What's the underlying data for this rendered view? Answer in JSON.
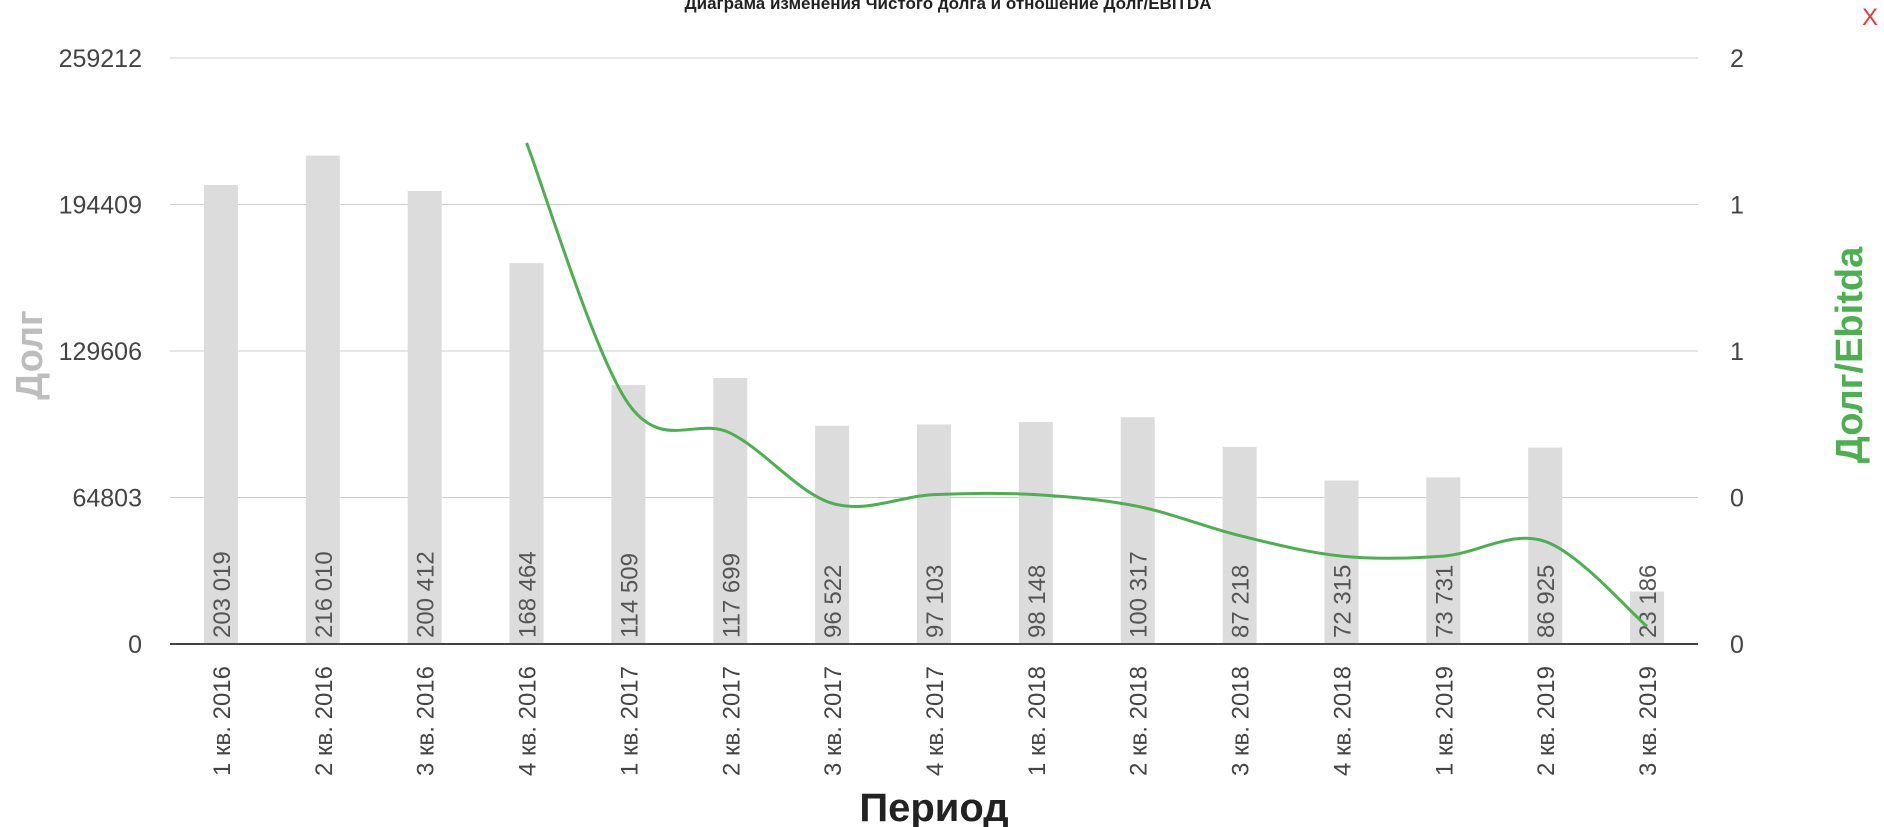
{
  "title": "Диаграма изменения Чистого долга и отношение Долг/EBITDA",
  "close_label": "X",
  "colors": {
    "bar": "#dcdcdc",
    "line": "#4caf50",
    "axis_left_title": "#bdbdbd",
    "axis_right_title": "#4caf50",
    "grid": "#cccccc",
    "baseline": "#444444",
    "close": "#e53935"
  },
  "chart_data": {
    "type": "bar",
    "categories": [
      "1 кв. 2016",
      "2 кв. 2016",
      "3 кв. 2016",
      "4 кв. 2016",
      "1 кв. 2017",
      "2 кв. 2017",
      "3 кв. 2017",
      "4 кв. 2017",
      "1 кв. 2018",
      "2 кв. 2018",
      "3 кв. 2018",
      "4 кв. 2018",
      "1 кв. 2019",
      "2 кв. 2019",
      "3 кв. 2019"
    ],
    "xlabel": "Период",
    "ylabel": "Долг",
    "y2label": "Долг/Ebitda",
    "ylim": [
      0,
      259212
    ],
    "y2lim": [
      0,
      2
    ],
    "yticks": [
      0,
      64803,
      129606,
      194409,
      259212
    ],
    "yticklabels": [
      "0",
      "64803",
      "129606",
      "194409",
      "259212"
    ],
    "y2ticks": [
      0,
      0.5,
      1,
      1.5,
      2
    ],
    "y2ticklabels": [
      "0",
      "0",
      "1",
      "1",
      "2"
    ],
    "grid": true,
    "series": [
      {
        "type": "bar",
        "axis": "left",
        "values": [
          203019,
          216010,
          200412,
          168464,
          114509,
          117699,
          96522,
          97103,
          98148,
          100317,
          87218,
          72315,
          73731,
          86925,
          23186
        ],
        "labels": [
          "203 019",
          "216 010",
          "200 412",
          "168 464",
          "114 509",
          "117 699",
          "96 522",
          "97 103",
          "98 148",
          "100 317",
          "87 218",
          "72 315",
          "73 731",
          "86 925",
          "23 186"
        ]
      },
      {
        "type": "line",
        "axis": "right",
        "values": [
          null,
          null,
          null,
          1.71,
          0.82,
          0.72,
          0.48,
          0.51,
          0.51,
          0.47,
          0.37,
          0.3,
          0.3,
          0.35,
          0.06
        ]
      }
    ]
  }
}
